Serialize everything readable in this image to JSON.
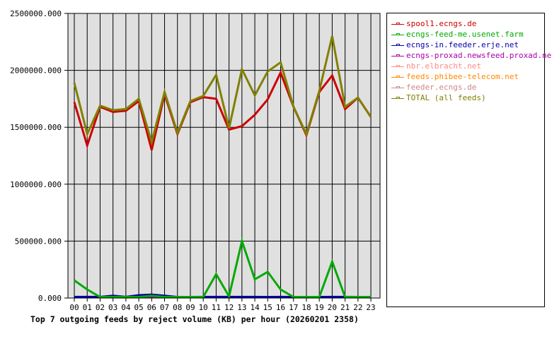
{
  "caption": "Top 7 outgoing feeds by reject volume (KB) per hour (20260201 2358)",
  "chart_data": {
    "type": "line",
    "title": "Top 7 outgoing feeds by reject volume (KB) per hour (20260201 2358)",
    "xlabel": "",
    "ylabel": "",
    "ylim": [
      0,
      2500000
    ],
    "yticks": [
      "0.000",
      "500000.000",
      "1000000.000",
      "1500000.000",
      "2000000.000",
      "2500000.000"
    ],
    "grid": true,
    "legend_position": "right",
    "categories": [
      "00",
      "01",
      "02",
      "03",
      "04",
      "05",
      "06",
      "07",
      "08",
      "09",
      "10",
      "11",
      "12",
      "13",
      "14",
      "15",
      "16",
      "17",
      "18",
      "19",
      "20",
      "21",
      "22",
      "23"
    ],
    "series": [
      {
        "name": "spool1.ecngs.de",
        "color": "#cc0000",
        "values": [
          1720000,
          1340000,
          1680000,
          1635000,
          1645000,
          1730000,
          1300000,
          1790000,
          1440000,
          1720000,
          1765000,
          1750000,
          1480000,
          1510000,
          1610000,
          1745000,
          1980000,
          1680000,
          1430000,
          1810000,
          1955000,
          1660000,
          1760000,
          1590000
        ]
      },
      {
        "name": "ecngs-feed-me.usenet.farm",
        "color": "#00aa00",
        "values": [
          155000,
          75000,
          0,
          0,
          0,
          0,
          20000,
          0,
          0,
          0,
          10000,
          210000,
          15000,
          500000,
          165000,
          230000,
          75000,
          0,
          0,
          0,
          320000,
          0,
          0,
          0
        ]
      },
      {
        "name": "ecngs-in.feeder.erje.net",
        "color": "#0000aa",
        "values": [
          10000,
          10000,
          10000,
          20000,
          10000,
          25000,
          30000,
          20000,
          0,
          0,
          10000,
          10000,
          10000,
          10000,
          10000,
          0,
          10000,
          0,
          0,
          0,
          10000,
          10000,
          0,
          0
        ]
      },
      {
        "name": "ecngs-proxad.newsfeed.proxad.net",
        "color": "#aa00aa",
        "values": [
          0,
          0,
          0,
          0,
          0,
          0,
          0,
          0,
          0,
          0,
          0,
          0,
          0,
          0,
          0,
          0,
          0,
          0,
          0,
          0,
          0,
          0,
          0,
          0
        ]
      },
      {
        "name": "nbr.elbracht.net",
        "color": "#ff8888",
        "values": [
          2000,
          2000,
          2000,
          2000,
          2000,
          2000,
          2000,
          2000,
          2000,
          2000,
          2000,
          2000,
          2000,
          2000,
          2000,
          2000,
          2000,
          2000,
          2000,
          2000,
          2000,
          2000,
          2000,
          2000
        ]
      },
      {
        "name": "feeds.phibee-telecom.net",
        "color": "#ff8800",
        "values": [
          0,
          0,
          0,
          0,
          0,
          0,
          0,
          0,
          3000,
          0,
          0,
          0,
          0,
          0,
          0,
          0,
          0,
          3000,
          3000,
          3000,
          0,
          0,
          0,
          0
        ]
      },
      {
        "name": "feeder.ecngs.de",
        "color": "#cc8888",
        "values": [
          3000,
          3000,
          3000,
          3000,
          3000,
          3000,
          3000,
          3000,
          3000,
          3000,
          3000,
          3000,
          3000,
          3000,
          3000,
          3000,
          3000,
          3000,
          3000,
          3000,
          3000,
          3000,
          3000,
          3000
        ]
      },
      {
        "name": "TOTAL (all feeds)",
        "color": "#808000",
        "values": [
          1890000,
          1440000,
          1690000,
          1650000,
          1660000,
          1750000,
          1370000,
          1810000,
          1450000,
          1730000,
          1775000,
          1960000,
          1490000,
          2010000,
          1780000,
          1990000,
          2070000,
          1680000,
          1440000,
          1820000,
          2300000,
          1680000,
          1760000,
          1590000
        ]
      }
    ]
  }
}
